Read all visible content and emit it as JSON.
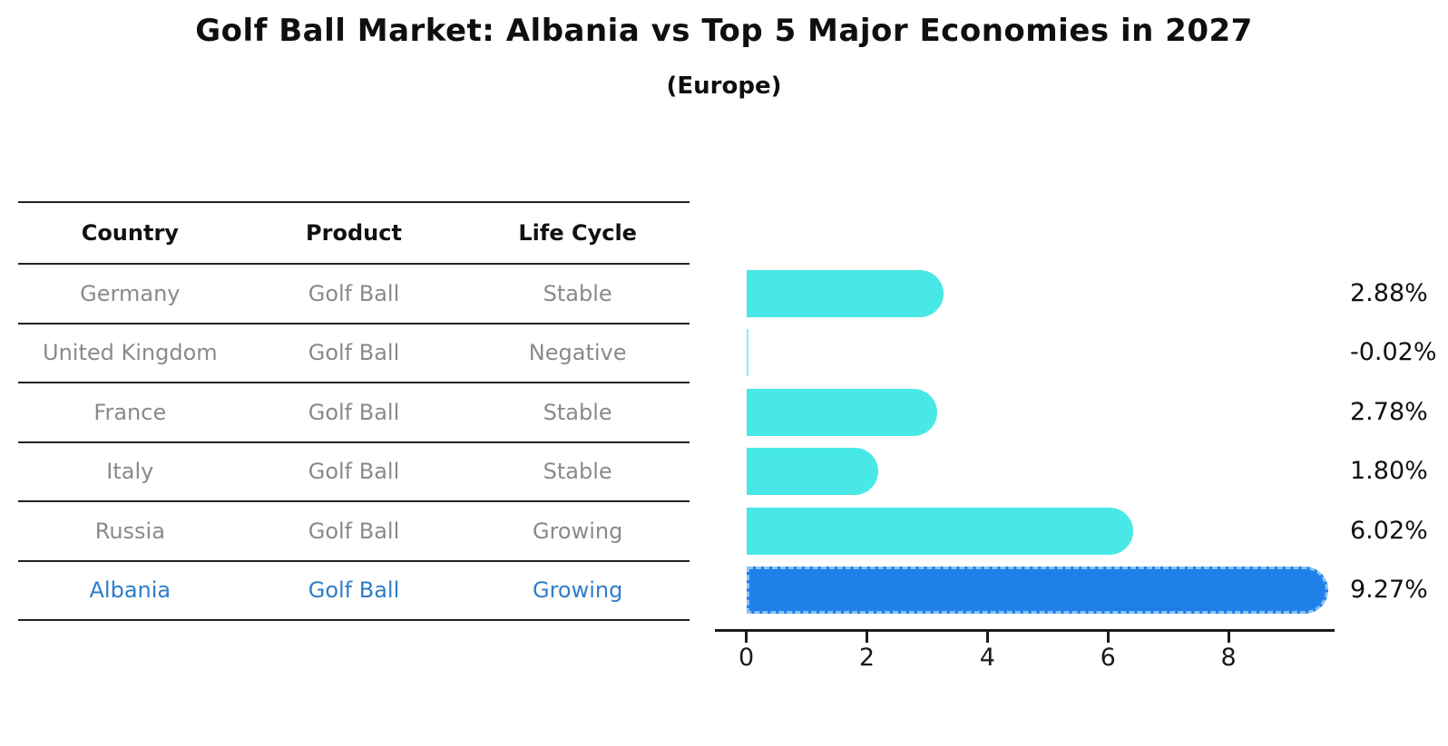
{
  "title": "Golf Ball Market: Albania vs Top 5 Major Economies in 2027",
  "subtitle": "(Europe)",
  "table": {
    "headers": [
      "Country",
      "Product",
      "Life Cycle"
    ],
    "rows": [
      {
        "country": "Germany",
        "product": "Golf Ball",
        "life_cycle": "Stable"
      },
      {
        "country": "United Kingdom",
        "product": "Golf Ball",
        "life_cycle": "Negative"
      },
      {
        "country": "France",
        "product": "Golf Ball",
        "life_cycle": "Stable"
      },
      {
        "country": "Italy",
        "product": "Golf Ball",
        "life_cycle": "Stable"
      },
      {
        "country": "Russia",
        "product": "Golf Ball",
        "life_cycle": "Growing"
      },
      {
        "country": "Albania",
        "product": "Golf Ball",
        "life_cycle": "Growing"
      }
    ],
    "highlight_row": "Albania"
  },
  "chart_data": {
    "type": "bar",
    "orientation": "horizontal",
    "title": "Golf Ball Market: Albania vs Top 5 Major Economies in 2027",
    "subtitle": "(Europe)",
    "categories": [
      "Germany",
      "United Kingdom",
      "France",
      "Italy",
      "Russia",
      "Albania"
    ],
    "values": [
      2.88,
      -0.02,
      2.78,
      1.8,
      6.02,
      9.27
    ],
    "value_labels": [
      "2.88%",
      "-0.02%",
      "2.78%",
      "1.80%",
      "6.02%",
      "9.27%"
    ],
    "xticks": [
      0,
      2,
      4,
      6,
      8
    ],
    "xlim": [
      -0.52,
      9.76
    ],
    "grid": false,
    "legend": false,
    "highlight_index": 5,
    "colors": {
      "bar": "#48e8e6",
      "highlight": "#1f80ea",
      "highlight_border": "#87c3f5",
      "value_label": "#111111",
      "axis": "#1a1a1a"
    }
  },
  "colors": {
    "table_line": "#222222",
    "header_text": "#111111",
    "body_text": "#8a8a8a",
    "highlight_text": "#2e7dc9"
  }
}
